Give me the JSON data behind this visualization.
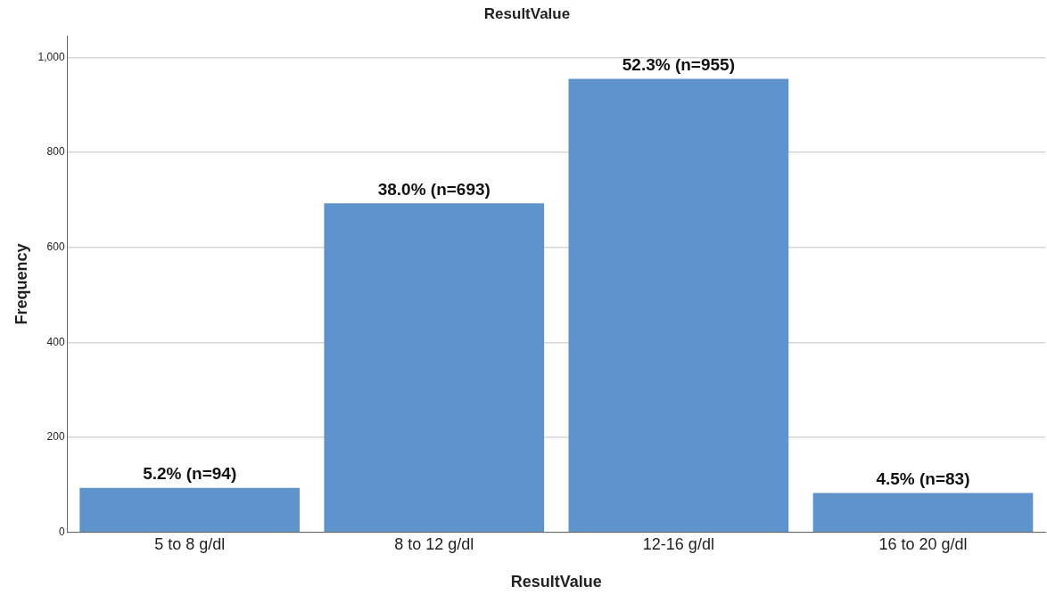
{
  "chart_data": {
    "type": "bar",
    "title": "ResultValue",
    "xlabel": "ResultValue",
    "ylabel": "Frequency",
    "categories": [
      "5 to 8 g/dl",
      "8 to 12 g/dl",
      "12-16 g/dl",
      "16 to 20 g/dl"
    ],
    "values": [
      94,
      693,
      955,
      83
    ],
    "value_labels": [
      "5.2% (n=94)",
      "38.0% (n=693)",
      "52.3% (n=955)",
      "4.5% (n=83)"
    ],
    "color": "#5e93cb",
    "ylim": [
      0,
      1045
    ],
    "yticks": [
      0,
      200,
      400,
      600,
      800,
      {
        "value": 1000,
        "label": "1,000"
      }
    ],
    "grid": "y"
  }
}
